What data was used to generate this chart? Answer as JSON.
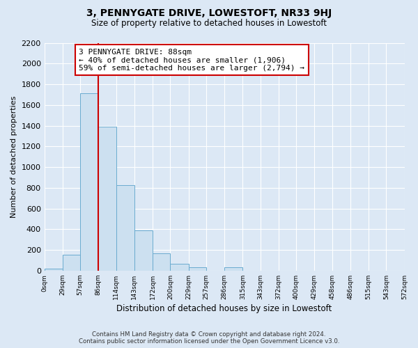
{
  "title": "3, PENNYGATE DRIVE, LOWESTOFT, NR33 9HJ",
  "subtitle": "Size of property relative to detached houses in Lowestoft",
  "xlabel": "Distribution of detached houses by size in Lowestoft",
  "ylabel": "Number of detached properties",
  "bar_edges": [
    0,
    29,
    57,
    86,
    114,
    143,
    172,
    200,
    229,
    257,
    286,
    315,
    343,
    372,
    400,
    429,
    458,
    486,
    515,
    543,
    572
  ],
  "bar_heights": [
    20,
    155,
    1710,
    1390,
    825,
    390,
    165,
    65,
    30,
    0,
    30,
    0,
    0,
    0,
    0,
    0,
    0,
    0,
    0,
    0
  ],
  "bar_color": "#cce0f0",
  "bar_edge_color": "#6aabcf",
  "property_line_x": 86,
  "property_line_color": "#cc0000",
  "annotation_line1": "3 PENNYGATE DRIVE: 88sqm",
  "annotation_line2": "← 40% of detached houses are smaller (1,906)",
  "annotation_line3": "59% of semi-detached houses are larger (2,794) →",
  "annotation_box_color": "#ffffff",
  "annotation_box_edge": "#cc0000",
  "ylim": [
    0,
    2200
  ],
  "yticks": [
    0,
    200,
    400,
    600,
    800,
    1000,
    1200,
    1400,
    1600,
    1800,
    2000,
    2200
  ],
  "xtick_labels": [
    "0sqm",
    "29sqm",
    "57sqm",
    "86sqm",
    "114sqm",
    "143sqm",
    "172sqm",
    "200sqm",
    "229sqm",
    "257sqm",
    "286sqm",
    "315sqm",
    "343sqm",
    "372sqm",
    "400sqm",
    "429sqm",
    "458sqm",
    "486sqm",
    "515sqm",
    "543sqm",
    "572sqm"
  ],
  "footer_text": "Contains HM Land Registry data © Crown copyright and database right 2024.\nContains public sector information licensed under the Open Government Licence v3.0.",
  "bg_color": "#dce8f5",
  "plot_bg_color": "#dce8f5"
}
